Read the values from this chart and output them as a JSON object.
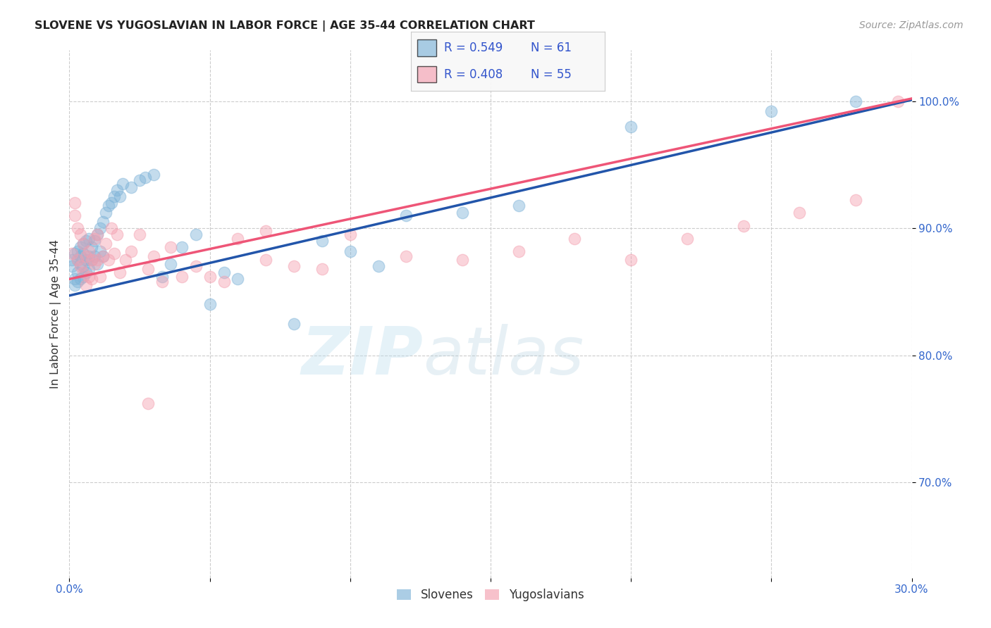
{
  "title": "SLOVENE VS YUGOSLAVIAN IN LABOR FORCE | AGE 35-44 CORRELATION CHART",
  "source_text": "Source: ZipAtlas.com",
  "ylabel": "In Labor Force | Age 35-44",
  "x_min": 0.0,
  "x_max": 0.3,
  "y_min": 0.625,
  "y_max": 1.04,
  "x_ticks": [
    0.0,
    0.05,
    0.1,
    0.15,
    0.2,
    0.25,
    0.3
  ],
  "y_ticks": [
    0.7,
    0.8,
    0.9,
    1.0
  ],
  "blue_color": "#7EB3D8",
  "pink_color": "#F4A0B0",
  "blue_line_color": "#2255AA",
  "pink_line_color": "#EE5577",
  "r_blue": 0.549,
  "n_blue": 61,
  "r_pink": 0.408,
  "n_pink": 55,
  "legend_label_blue": "Slovenes",
  "legend_label_pink": "Yugoslavians",
  "watermark_zip": "ZIP",
  "watermark_atlas": "atlas",
  "grid_color": "#CCCCCC",
  "blue_trend_x0": 0.0,
  "blue_trend_y0": 0.847,
  "blue_trend_x1": 0.3,
  "blue_trend_y1": 1.001,
  "pink_trend_x0": 0.0,
  "pink_trend_y0": 0.86,
  "pink_trend_x1": 0.3,
  "pink_trend_y1": 1.002,
  "blue_scatter_x": [
    0.001,
    0.001,
    0.002,
    0.002,
    0.002,
    0.003,
    0.003,
    0.003,
    0.003,
    0.004,
    0.004,
    0.004,
    0.004,
    0.005,
    0.005,
    0.005,
    0.005,
    0.006,
    0.006,
    0.006,
    0.007,
    0.007,
    0.007,
    0.008,
    0.008,
    0.009,
    0.009,
    0.01,
    0.01,
    0.011,
    0.011,
    0.012,
    0.012,
    0.013,
    0.014,
    0.015,
    0.016,
    0.017,
    0.018,
    0.019,
    0.022,
    0.025,
    0.027,
    0.03,
    0.033,
    0.036,
    0.04,
    0.045,
    0.05,
    0.055,
    0.06,
    0.08,
    0.09,
    0.1,
    0.11,
    0.12,
    0.14,
    0.16,
    0.2,
    0.25,
    0.28
  ],
  "blue_scatter_y": [
    0.87,
    0.875,
    0.86,
    0.88,
    0.855,
    0.875,
    0.882,
    0.865,
    0.858,
    0.872,
    0.878,
    0.885,
    0.86,
    0.88,
    0.87,
    0.888,
    0.862,
    0.89,
    0.875,
    0.865,
    0.878,
    0.892,
    0.868,
    0.885,
    0.875,
    0.89,
    0.878,
    0.895,
    0.872,
    0.9,
    0.882,
    0.905,
    0.878,
    0.912,
    0.918,
    0.92,
    0.925,
    0.93,
    0.925,
    0.935,
    0.932,
    0.938,
    0.94,
    0.942,
    0.862,
    0.872,
    0.885,
    0.895,
    0.84,
    0.865,
    0.86,
    0.825,
    0.89,
    0.882,
    0.87,
    0.91,
    0.912,
    0.918,
    0.98,
    0.992,
    1.0
  ],
  "pink_scatter_x": [
    0.001,
    0.002,
    0.002,
    0.003,
    0.003,
    0.004,
    0.004,
    0.005,
    0.005,
    0.006,
    0.006,
    0.007,
    0.007,
    0.008,
    0.008,
    0.009,
    0.009,
    0.01,
    0.01,
    0.011,
    0.012,
    0.013,
    0.014,
    0.015,
    0.016,
    0.017,
    0.018,
    0.02,
    0.022,
    0.025,
    0.028,
    0.03,
    0.033,
    0.036,
    0.04,
    0.045,
    0.05,
    0.055,
    0.06,
    0.07,
    0.08,
    0.09,
    0.1,
    0.12,
    0.14,
    0.16,
    0.18,
    0.2,
    0.22,
    0.24,
    0.26,
    0.28,
    0.295,
    0.028,
    0.07
  ],
  "pink_scatter_y": [
    0.88,
    0.92,
    0.91,
    0.9,
    0.875,
    0.87,
    0.895,
    0.865,
    0.888,
    0.855,
    0.878,
    0.882,
    0.862,
    0.875,
    0.86,
    0.892,
    0.872,
    0.875,
    0.895,
    0.862,
    0.878,
    0.888,
    0.875,
    0.9,
    0.88,
    0.895,
    0.865,
    0.875,
    0.882,
    0.895,
    0.868,
    0.878,
    0.858,
    0.885,
    0.862,
    0.87,
    0.862,
    0.858,
    0.892,
    0.898,
    0.87,
    0.868,
    0.895,
    0.878,
    0.875,
    0.882,
    0.892,
    0.875,
    0.892,
    0.902,
    0.912,
    0.922,
    1.0,
    0.762,
    0.875
  ]
}
